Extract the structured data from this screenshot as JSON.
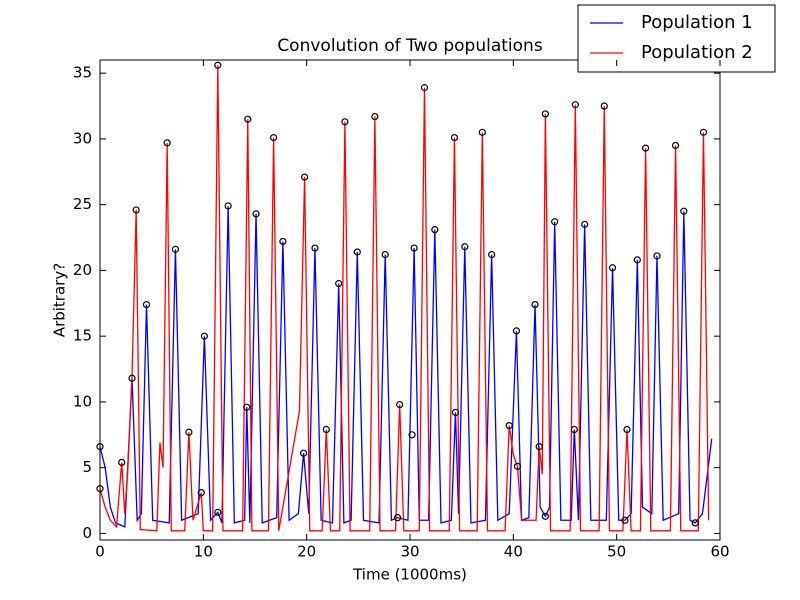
{
  "chart_data": {
    "type": "line",
    "title": "Convolution of Two populations",
    "x_label": "Time (1000ms)",
    "y_label": "Arbitrary?",
    "xlim": [
      0,
      60
    ],
    "ylim": [
      -0.5,
      36
    ],
    "xticks": [
      0,
      10,
      20,
      30,
      40,
      50,
      60
    ],
    "yticks": [
      0,
      5,
      10,
      15,
      20,
      25,
      30,
      35
    ],
    "legend_position": "upper right",
    "series": [
      {
        "name": "Population 1",
        "color": "#0000ff",
        "x": [
          0,
          0.5,
          1,
          1.5,
          2.4,
          3.1,
          3.6,
          4,
          4.5,
          5.1,
          6.7,
          7.3,
          7.9,
          9.5,
          10.1,
          10.7,
          11.4,
          11.8,
          12.4,
          13,
          14,
          14.2,
          14.5,
          15.1,
          15.7,
          17.1,
          17.7,
          18.3,
          19.2,
          19.7,
          20.2,
          20.8,
          21.4,
          22.5,
          23.1,
          23.6,
          24.3,
          24.9,
          25.5,
          27,
          27.6,
          28.2,
          28.8,
          29.8,
          30.4,
          30.9,
          31.8,
          32.4,
          33,
          34,
          34.4,
          34.7,
          35.3,
          35.9,
          37.3,
          37.9,
          38.5,
          39.6,
          40.3,
          40.8,
          41.5,
          42.1,
          42.6,
          43.1,
          43.5,
          44,
          44.6,
          45.6,
          45.9,
          46.3,
          46.9,
          47.5,
          49,
          49.6,
          50.2,
          50.8,
          51.4,
          52,
          52.5,
          53.4,
          53.9,
          54.5,
          56,
          56.5,
          57.1,
          57.6,
          58.3,
          59.2
        ],
        "values": [
          6.6,
          5,
          2,
          0.8,
          0.5,
          11.8,
          1,
          1.5,
          17.4,
          1,
          0.8,
          21.6,
          1,
          1.5,
          15,
          1,
          1.6,
          0.8,
          24.9,
          0.8,
          1,
          9.6,
          0.8,
          24.3,
          0.8,
          1.2,
          22.2,
          1,
          1.5,
          6.1,
          1.5,
          21.7,
          1,
          0.8,
          19,
          0.8,
          1,
          21.4,
          1,
          0.8,
          21.2,
          1,
          1.2,
          1,
          21.7,
          1,
          1,
          23.1,
          0.8,
          1,
          9.2,
          1.5,
          21.8,
          0.8,
          1,
          21.2,
          1,
          1.5,
          15.4,
          1,
          1.2,
          17.4,
          2,
          1.3,
          2,
          23.7,
          1,
          1,
          7.9,
          1,
          23.5,
          1,
          1,
          20.2,
          1,
          1,
          1.5,
          20.8,
          2,
          1.5,
          21.1,
          1,
          1.5,
          24.5,
          1,
          0.8,
          1.5,
          7.2
        ]
      },
      {
        "name": "Population 2",
        "color": "#ff0000",
        "x": [
          0,
          0.5,
          1,
          1.6,
          2.1,
          2.4,
          2.7,
          3.1,
          3.5,
          3.9,
          5.5,
          5.8,
          6.1,
          6.5,
          6.9,
          8.2,
          8.6,
          9,
          9.8,
          10,
          10.9,
          11.4,
          11.9,
          13.8,
          14.3,
          14.7,
          16.3,
          16.8,
          17.3,
          19.3,
          19.8,
          20.3,
          21.5,
          21.9,
          22.3,
          23.2,
          23.7,
          24.2,
          26.1,
          26.6,
          27.1,
          28.6,
          29,
          29.4,
          30.9,
          31.4,
          31.9,
          33.8,
          34.3,
          34.8,
          36.5,
          37,
          37.5,
          39.2,
          39.6,
          40,
          40.4,
          40.8,
          42.2,
          42.5,
          42.8,
          43.1,
          43.6,
          45.5,
          46,
          46.5,
          48.3,
          48.8,
          49.3,
          50.6,
          51,
          51.4,
          52.3,
          52.8,
          53.3,
          55.2,
          55.7,
          56.2,
          57.9,
          58.4,
          58.9
        ],
        "values": [
          3.4,
          2,
          1,
          0.5,
          5.4,
          1.5,
          5,
          12,
          24.6,
          0.3,
          0.2,
          6.9,
          5,
          29.7,
          0.2,
          0.2,
          7.7,
          1,
          3.1,
          0.2,
          0.2,
          35.6,
          0.2,
          0.2,
          31.5,
          0.2,
          0.2,
          30.1,
          0.2,
          9.3,
          27.1,
          0.2,
          0.2,
          7.9,
          0.2,
          0.2,
          31.3,
          0.2,
          0.2,
          31.7,
          0.2,
          0.2,
          9.8,
          0.2,
          0.2,
          33.9,
          0.2,
          0.2,
          30.1,
          0.2,
          0.2,
          30.5,
          0.2,
          0.2,
          8.2,
          6,
          5.1,
          1,
          1,
          6.6,
          4.5,
          31.9,
          0.2,
          0.2,
          32.6,
          0.2,
          0.2,
          32.5,
          0.2,
          0.2,
          7.9,
          0.2,
          0.2,
          29.3,
          0.2,
          0.2,
          29.5,
          0.2,
          0.2,
          30.5,
          1
        ]
      }
    ],
    "extrema": {
      "color": "#000000",
      "x": [
        0,
        0,
        2.1,
        3.1,
        3.5,
        4.5,
        6.5,
        7.3,
        8.6,
        9.8,
        10.1,
        11.4,
        11.4,
        12.4,
        14.2,
        14.3,
        15.1,
        16.8,
        17.7,
        19.7,
        19.8,
        20.8,
        21.9,
        23.1,
        23.7,
        24.9,
        26.6,
        27.6,
        28.8,
        29,
        30.2,
        30.4,
        31.4,
        32.4,
        34.3,
        34.4,
        35.3,
        37,
        37.9,
        39.6,
        40.3,
        40.4,
        42.1,
        42.5,
        43.1,
        43.1,
        44,
        45.9,
        46,
        46.9,
        48.8,
        49.6,
        50.8,
        51,
        52,
        52.8,
        53.9,
        55.7,
        56.5,
        57.6,
        58.4
      ],
      "values": [
        6.6,
        3.4,
        5.4,
        11.8,
        24.6,
        17.4,
        29.7,
        21.6,
        7.7,
        3.1,
        15,
        35.6,
        1.6,
        24.9,
        9.6,
        31.5,
        24.3,
        30.1,
        22.2,
        6.1,
        27.1,
        21.7,
        7.9,
        19,
        31.3,
        21.4,
        31.7,
        21.2,
        1.2,
        9.8,
        7.5,
        21.7,
        33.9,
        23.1,
        30.1,
        9.2,
        21.8,
        30.5,
        21.2,
        8.2,
        15.4,
        5.1,
        17.4,
        6.6,
        31.9,
        1.3,
        23.7,
        7.9,
        32.6,
        23.5,
        32.5,
        20.2,
        1.0,
        7.9,
        20.8,
        29.3,
        21.1,
        29.5,
        24.5,
        0.8,
        30.5
      ]
    }
  }
}
